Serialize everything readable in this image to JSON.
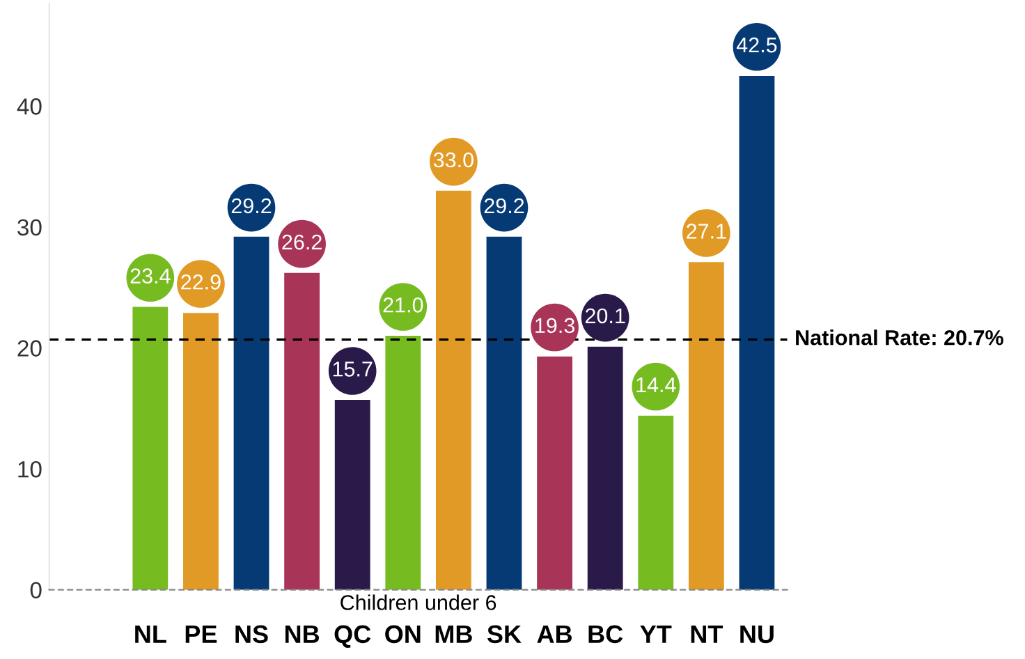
{
  "chart_data": {
    "type": "bar",
    "xlabel": "Children under 6",
    "categories": [
      "NL",
      "PE",
      "NS",
      "NB",
      "QC",
      "ON",
      "MB",
      "SK",
      "AB",
      "BC",
      "YT",
      "NT",
      "NU"
    ],
    "values": [
      23.4,
      22.9,
      29.2,
      26.2,
      15.7,
      21.0,
      33.0,
      29.2,
      19.3,
      20.1,
      14.4,
      27.1,
      42.5
    ],
    "value_labels": [
      "23.4",
      "22.9",
      "29.2",
      "26.2",
      "15.7",
      "21.0",
      "33.0",
      "29.2",
      "19.3",
      "20.1",
      "14.4",
      "27.1",
      "42.5"
    ],
    "colors": [
      "#76bc21",
      "#e29a26",
      "#063a74",
      "#a83458",
      "#2a1a4a",
      "#76bc21",
      "#e29a26",
      "#063a74",
      "#a83458",
      "#2a1a4a",
      "#76bc21",
      "#e29a26",
      "#063a74"
    ],
    "ylim": [
      0,
      48.5
    ],
    "yticks": [
      0,
      10,
      20,
      30,
      40
    ],
    "grid": false,
    "legend": false,
    "ref_lines": [
      {
        "axis": "y",
        "value": 20.7,
        "label": "National Rate: 20.7%",
        "color": "#000000",
        "line_style": "dashed"
      }
    ]
  }
}
